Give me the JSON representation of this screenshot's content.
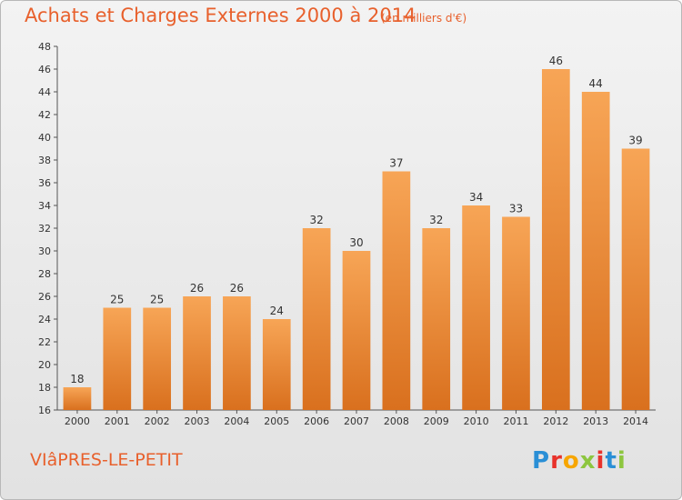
{
  "title": "Achats et Charges Externes 2000 à 2014",
  "subtitle": "(en milliers d'€)",
  "commune": "VIâPRES-LE-PETIT",
  "logo": {
    "letters": [
      "P",
      "r",
      "o",
      "x",
      "i",
      "t",
      "i"
    ],
    "colors": [
      "#2a8fd6",
      "#e8322b",
      "#f7a600",
      "#8dc63f",
      "#e8322b",
      "#2a8fd6",
      "#8dc63f"
    ]
  },
  "colors": {
    "bar_light": "#f7a556",
    "bar_dark": "#d9701e",
    "text": "#e8602c"
  },
  "chart_data": {
    "type": "bar",
    "title": "Achats et Charges Externes 2000 à 2014",
    "subtitle": "(en milliers d'€)",
    "categories": [
      "2000",
      "2001",
      "2002",
      "2003",
      "2004",
      "2005",
      "2006",
      "2007",
      "2008",
      "2009",
      "2010",
      "2011",
      "2012",
      "2013",
      "2014"
    ],
    "values": [
      18,
      25,
      25,
      26,
      26,
      24,
      32,
      30,
      37,
      32,
      34,
      33,
      46,
      44,
      39
    ],
    "ylim": [
      16,
      48
    ],
    "yticks": [
      16,
      18,
      20,
      22,
      24,
      26,
      28,
      30,
      32,
      34,
      36,
      38,
      40,
      42,
      44,
      46,
      48
    ],
    "grid": false,
    "data_labels": true
  }
}
